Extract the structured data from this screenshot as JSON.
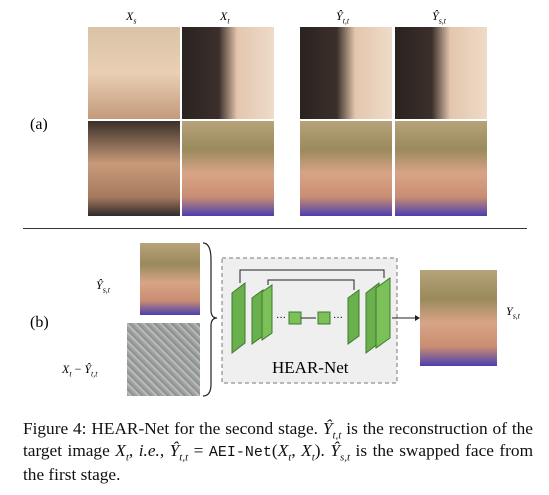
{
  "part_a": {
    "label": "(a)",
    "columns": [
      {
        "base": "X",
        "sub": "s"
      },
      {
        "base": "X",
        "sub": "t"
      },
      {
        "base": "Ŷ",
        "sub": "t,t"
      },
      {
        "base": "Ŷ",
        "sub": "s,t"
      }
    ]
  },
  "part_b": {
    "label": "(b)",
    "input_1": {
      "base": "Ŷ",
      "sub": "s,t"
    },
    "input_2": {
      "base": "X",
      "sub": "t",
      "op": "−",
      "base2": "Ŷ",
      "sub2": "t,t"
    },
    "network": "HEAR-Net",
    "output": {
      "base": "Y",
      "sub": "s,t"
    }
  },
  "caption": [
    "Figure 4: HEAR-Net for the second stage. ",
    "Ŷ",
    "t,t",
    " is the reconstruction of the target image ",
    "X",
    "t",
    ", ",
    "i.e.",
    ", ",
    "Ŷ",
    "t,t",
    " = ",
    "AEI-Net",
    "(",
    "X",
    "t",
    ", ",
    "X",
    "t",
    "). ",
    "Ŷ",
    "s,t",
    " is the swapped face from the first stage."
  ]
}
